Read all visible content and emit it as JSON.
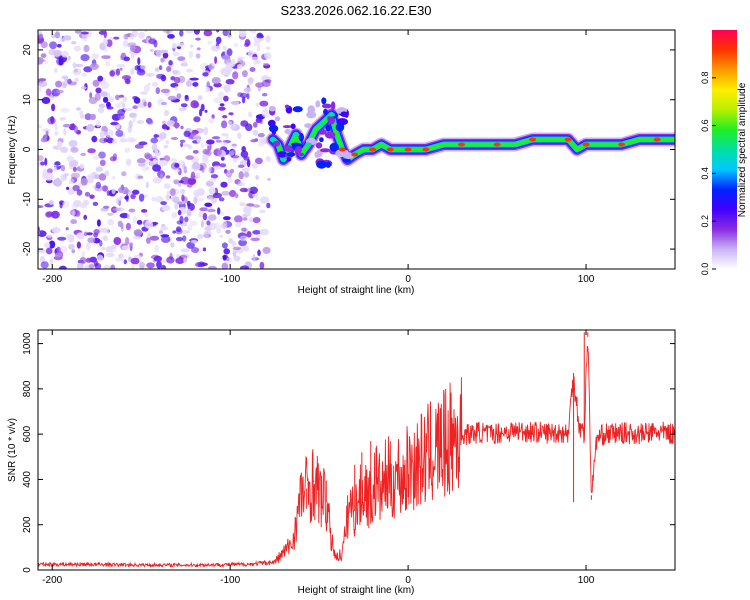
{
  "figure_title": "S233.2026.062.16.22.E30",
  "colors": {
    "snr_line": "#ee2222",
    "axis": "#000000",
    "colormap": [
      "#ffffff",
      "#c9b3f5",
      "#8a2be2",
      "#3f00ff",
      "#0022ff",
      "#00c8ff",
      "#00e0a0",
      "#22ee22",
      "#b8f000",
      "#ffee00",
      "#ff9900",
      "#ff3300",
      "#ff0055"
    ]
  },
  "chart_data": [
    {
      "type": "heatmap",
      "title": "S233.2026.062.16.22.E30",
      "xlabel": "Height of straight line (km)",
      "ylabel": "Frequency (Hz)",
      "xlim": [
        -208,
        150
      ],
      "ylim": [
        -24,
        24
      ],
      "xticks": [
        -200,
        -100,
        0,
        100
      ],
      "xtick_labels": [
        "-200",
        "-100",
        "0",
        "100"
      ],
      "yticks": [
        -20,
        -10,
        0,
        10,
        20
      ],
      "ytick_labels": [
        "-20",
        "-10",
        "0",
        "10",
        "20"
      ],
      "noise_region_x": [
        -208,
        -78
      ],
      "ridge_points": [
        [
          -76,
          2
        ],
        [
          -73,
          1
        ],
        [
          -70,
          -2
        ],
        [
          -67,
          0
        ],
        [
          -63,
          3
        ],
        [
          -60,
          -1
        ],
        [
          -56,
          1
        ],
        [
          -52,
          4
        ],
        [
          -49,
          5
        ],
        [
          -46,
          6
        ],
        [
          -43,
          7
        ],
        [
          -40,
          3
        ],
        [
          -37,
          0
        ],
        [
          -34,
          -2
        ],
        [
          -30,
          -1
        ],
        [
          -25,
          0
        ],
        [
          -20,
          0
        ],
        [
          -15,
          1
        ],
        [
          -10,
          0
        ],
        [
          -5,
          0
        ],
        [
          0,
          0
        ],
        [
          5,
          0
        ],
        [
          10,
          0
        ],
        [
          20,
          1
        ],
        [
          30,
          1
        ],
        [
          40,
          1
        ],
        [
          50,
          1
        ],
        [
          60,
          1
        ],
        [
          70,
          2
        ],
        [
          80,
          2
        ],
        [
          90,
          2
        ],
        [
          95,
          0
        ],
        [
          100,
          1
        ],
        [
          110,
          1
        ],
        [
          120,
          1
        ],
        [
          130,
          2
        ],
        [
          140,
          2
        ],
        [
          150,
          2
        ]
      ],
      "colorbar": {
        "label": "Normalized spectral amplitude",
        "range": [
          0,
          1
        ],
        "ticks": [
          0.0,
          0.2,
          0.4,
          0.6,
          0.8
        ],
        "tick_labels": [
          "0.0",
          "0.2",
          "0.4",
          "0.6",
          "0.8"
        ]
      }
    },
    {
      "type": "line",
      "xlabel": "Height of straight line (km)",
      "ylabel": "SNR (10 * v/v)",
      "xlim": [
        -208,
        150
      ],
      "ylim": [
        0,
        1060
      ],
      "xticks": [
        -200,
        -100,
        0,
        100
      ],
      "xtick_labels": [
        "-200",
        "-100",
        "0",
        "100"
      ],
      "yticks": [
        0,
        200,
        400,
        600,
        800,
        1000
      ],
      "ytick_labels": [
        "0",
        "200",
        "400",
        "600",
        "800",
        "1000"
      ],
      "series": [
        {
          "name": "SNR",
          "x": [
            -208,
            -180,
            -150,
            -120,
            -90,
            -75,
            -65,
            -60,
            -57,
            -53,
            -50,
            -46,
            -43,
            -40,
            -37,
            -35,
            -33,
            -30,
            -27,
            -24,
            -21,
            -18,
            -15,
            -12,
            -9,
            -6,
            -3,
            0,
            5,
            10,
            15,
            20,
            25,
            30,
            35,
            40,
            45,
            50,
            60,
            70,
            80,
            85,
            90,
            93,
            96,
            99,
            101,
            103,
            106,
            110,
            120,
            130,
            140,
            150
          ],
          "y": [
            25,
            25,
            22,
            22,
            25,
            35,
            120,
            330,
            360,
            390,
            340,
            300,
            120,
            55,
            75,
            170,
            290,
            260,
            320,
            360,
            300,
            400,
            340,
            420,
            380,
            430,
            400,
            450,
            470,
            500,
            530,
            550,
            580,
            600,
            600,
            610,
            600,
            605,
            615,
            610,
            605,
            610,
            600,
            870,
            640,
            600,
            1050,
            330,
            580,
            600,
            605,
            600,
            610,
            600
          ],
          "spikes": [
            [
              -60,
              430
            ],
            [
              -57,
              270
            ],
            [
              -53,
              395
            ],
            [
              -50,
              280
            ],
            [
              -46,
              395
            ],
            [
              -34,
              330
            ],
            [
              -30,
              465
            ],
            [
              -26,
              520
            ],
            [
              -21,
              570
            ],
            [
              -18,
              540
            ],
            [
              93,
              870
            ],
            [
              93,
              300
            ],
            [
              99,
              1050
            ],
            [
              101,
              1030
            ],
            [
              103,
              310
            ]
          ]
        }
      ]
    }
  ]
}
